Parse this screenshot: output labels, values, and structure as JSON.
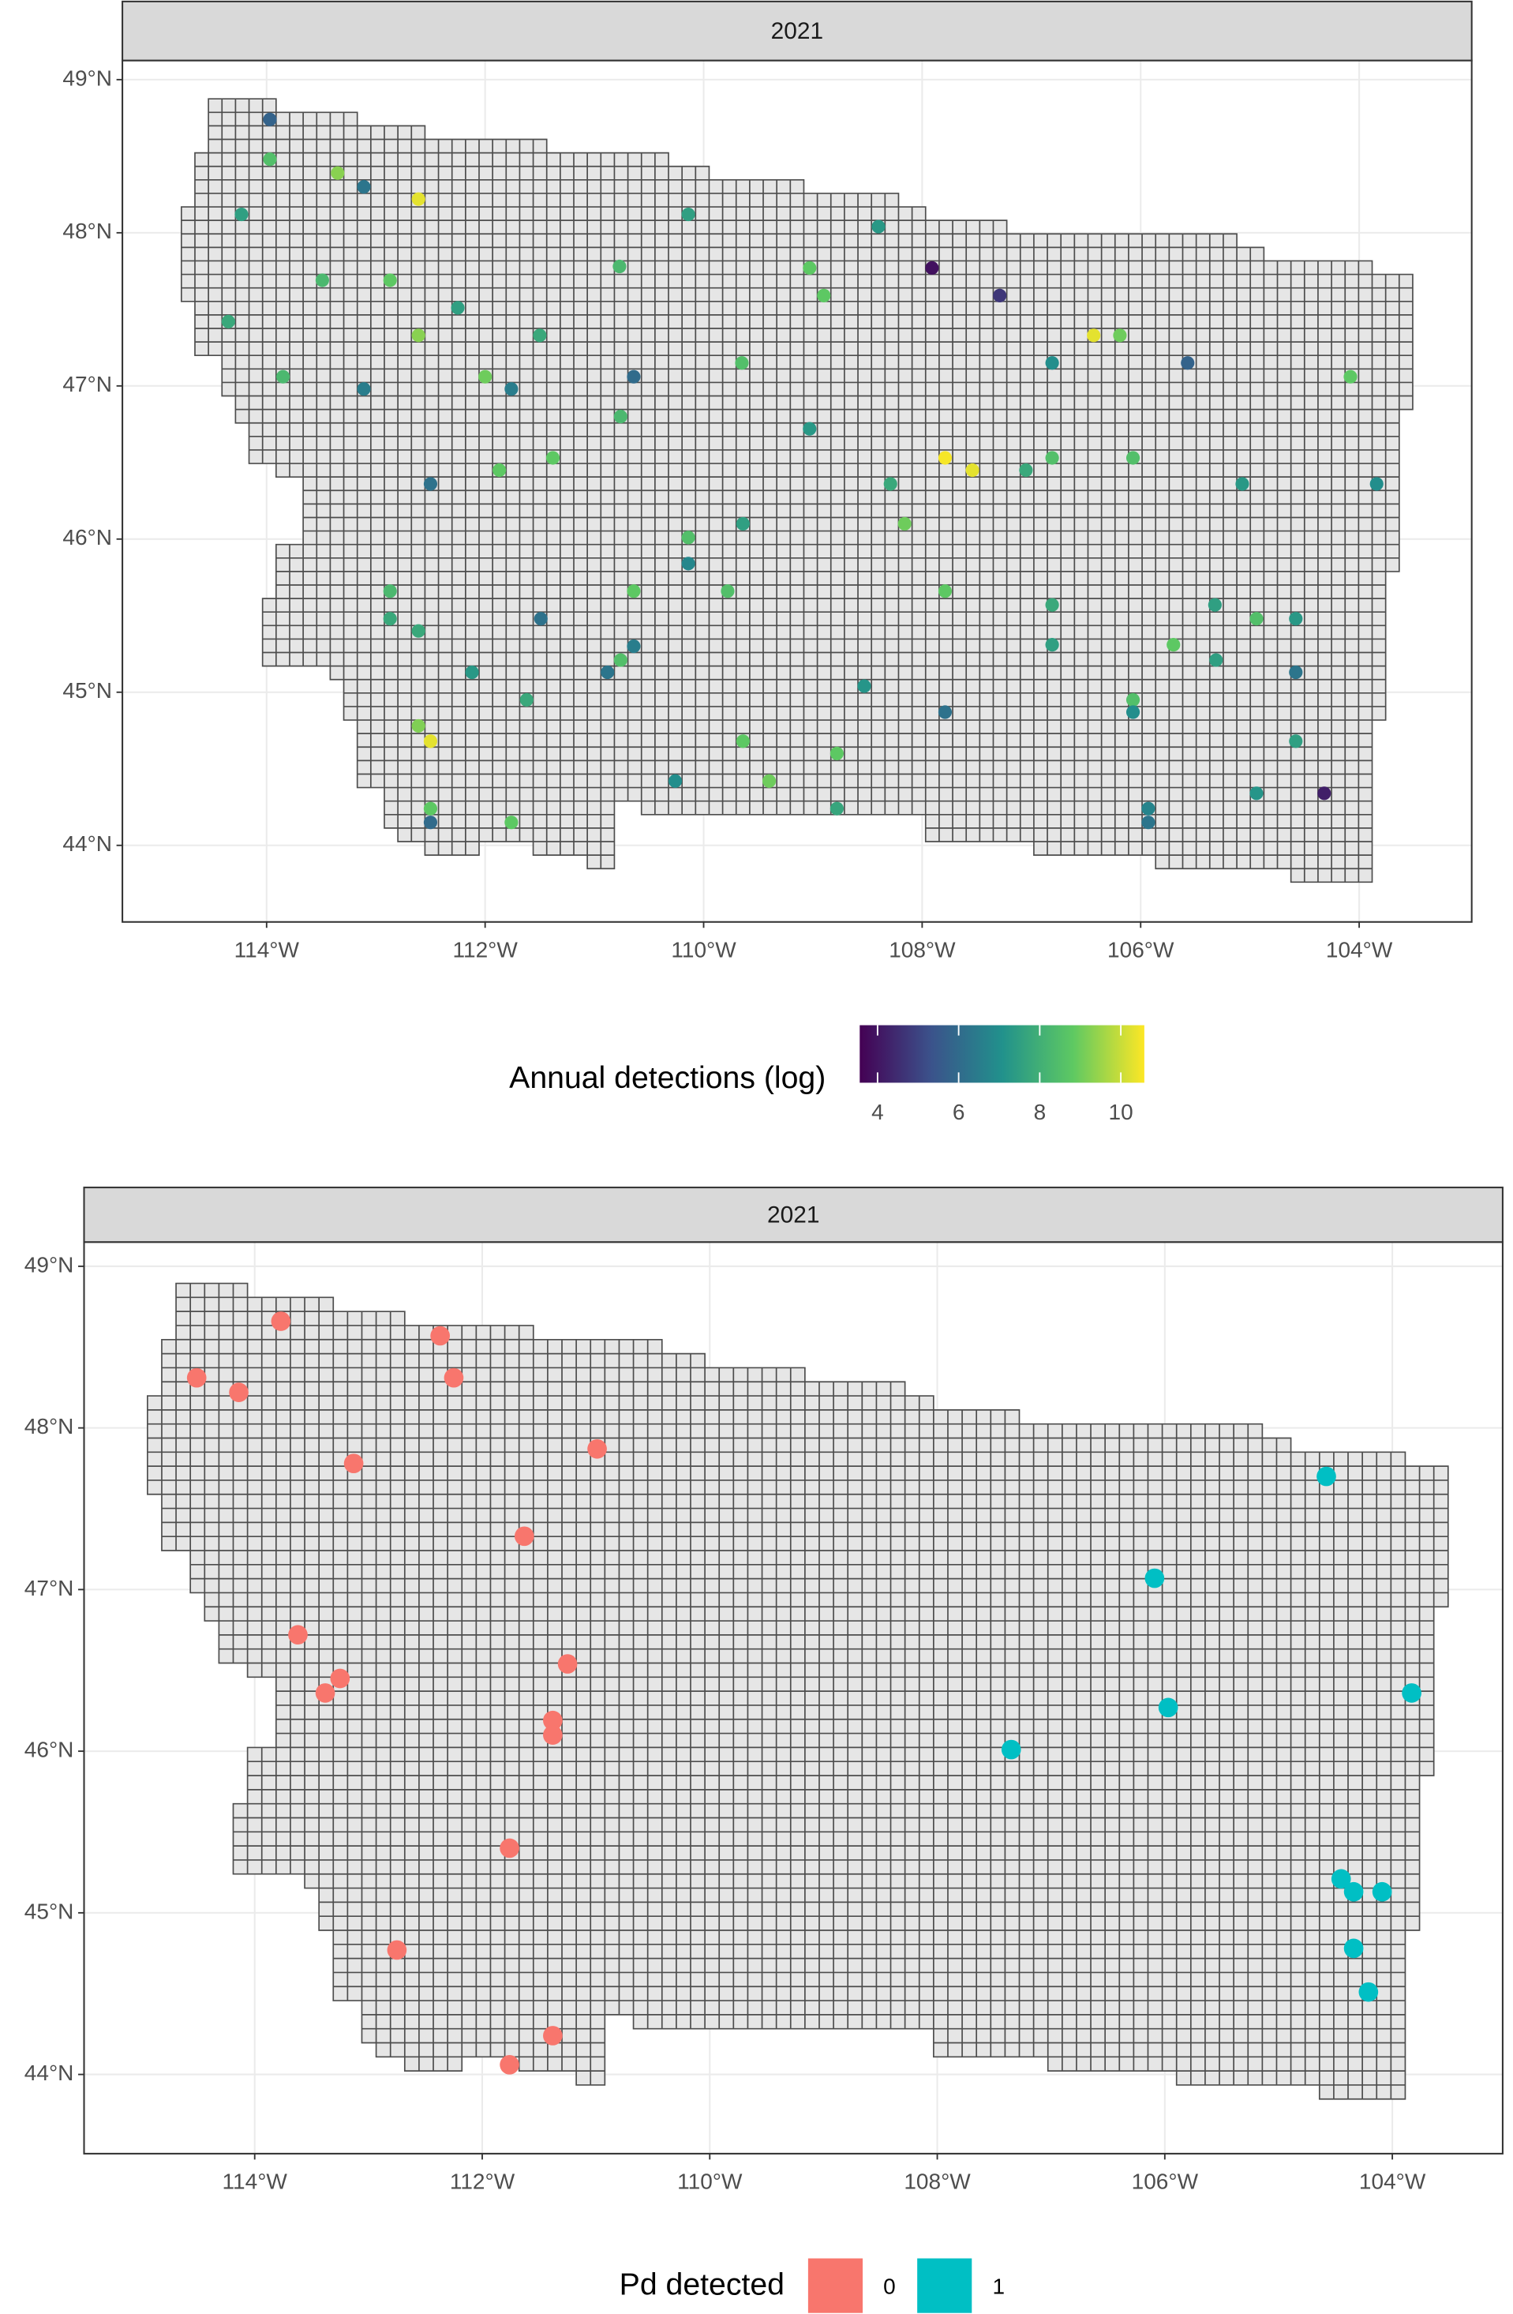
{
  "chart_data": [
    {
      "type": "scatter",
      "strip": "2021",
      "color_scale": "viridis",
      "legend_title": "Annual detections (log)",
      "x": [
        -113.97,
        -113.97,
        -113.35,
        -113.11,
        -112.61,
        -114.23,
        -110.14,
        -108.4,
        -113.49,
        -112.87,
        -110.77,
        -109.03,
        -107.91,
        -107.29,
        -108.9,
        -112.25,
        -114.35,
        -112.61,
        -111.5,
        -106.43,
        -106.19,
        -113.85,
        -112.0,
        -113.11,
        -111.76,
        -110.64,
        -109.65,
        -106.81,
        -105.57,
        -104.08,
        -110.76,
        -109.03,
        -107.79,
        -107.54,
        -111.38,
        -111.87,
        -107.05,
        -106.81,
        -106.07,
        -112.5,
        -108.29,
        -105.07,
        -103.84,
        -109.64,
        -108.16,
        -110.14,
        -110.14,
        -112.87,
        -110.64,
        -109.78,
        -107.79,
        -106.81,
        -105.32,
        -112.87,
        -111.49,
        -104.94,
        -104.58,
        -112.61,
        -110.64,
        -110.76,
        -106.81,
        -105.7,
        -105.31,
        -112.12,
        -110.88,
        -104.58,
        -108.53,
        -111.62,
        -106.07,
        -106.07,
        -107.79,
        -112.61,
        -112.5,
        -109.64,
        -104.58,
        -108.78,
        -110.26,
        -109.4,
        -104.94,
        -104.32,
        -112.5,
        -108.78,
        -105.93,
        -112.5,
        -111.76,
        -105.93
      ],
      "y": [
        48.74,
        48.48,
        48.39,
        48.3,
        48.22,
        48.12,
        48.12,
        48.04,
        47.69,
        47.69,
        47.78,
        47.77,
        47.77,
        47.59,
        47.59,
        47.51,
        47.42,
        47.33,
        47.33,
        47.33,
        47.33,
        47.06,
        47.06,
        46.98,
        46.98,
        47.06,
        47.15,
        47.15,
        47.15,
        47.06,
        46.8,
        46.72,
        46.53,
        46.45,
        46.53,
        46.45,
        46.45,
        46.53,
        46.53,
        46.36,
        46.36,
        46.36,
        46.36,
        46.1,
        46.1,
        46.01,
        45.84,
        45.66,
        45.66,
        45.66,
        45.66,
        45.57,
        45.57,
        45.48,
        45.48,
        45.48,
        45.48,
        45.4,
        45.3,
        45.21,
        45.31,
        45.31,
        45.21,
        45.13,
        45.13,
        45.13,
        45.04,
        44.95,
        44.95,
        44.87,
        44.87,
        44.78,
        44.68,
        44.68,
        44.68,
        44.6,
        44.42,
        44.42,
        44.34,
        44.34,
        44.24,
        44.24,
        44.24,
        44.15,
        44.15,
        44.15
      ],
      "values": [
        5.8,
        8.5,
        9.3,
        6.3,
        10.3,
        7.5,
        7.5,
        7.3,
        8.3,
        8.8,
        8.3,
        8.8,
        3.9,
        4.7,
        8.8,
        7.5,
        7.8,
        9.3,
        7.8,
        10.3,
        9.0,
        8.3,
        9.0,
        6.5,
        6.5,
        6.0,
        8.5,
        7.0,
        5.8,
        8.8,
        8.3,
        7.3,
        10.5,
        10.3,
        8.8,
        8.8,
        7.8,
        8.5,
        8.5,
        6.2,
        7.8,
        7.3,
        7.0,
        7.5,
        9.0,
        8.5,
        6.8,
        8.3,
        8.8,
        8.5,
        8.8,
        7.8,
        7.5,
        7.8,
        6.2,
        8.5,
        7.3,
        7.8,
        6.5,
        8.5,
        7.5,
        8.8,
        7.5,
        7.3,
        6.3,
        6.3,
        7.2,
        7.8,
        8.5,
        7.0,
        6.2,
        9.2,
        10.3,
        8.8,
        7.5,
        8.8,
        7.0,
        9.0,
        7.2,
        4.2,
        8.8,
        7.7,
        6.7,
        6.0,
        8.8,
        6.3
      ],
      "clim": [
        3.56,
        10.58
      ],
      "cticks": [
        4,
        6,
        8,
        10
      ],
      "xlim": [
        -115.32,
        -102.97
      ],
      "ylim": [
        43.5,
        49.125
      ],
      "xticks": [
        {
          "value": -114,
          "label": "114°W"
        },
        {
          "value": -112,
          "label": "112°W"
        },
        {
          "value": -110,
          "label": "110°W"
        },
        {
          "value": -108,
          "label": "108°W"
        },
        {
          "value": -106,
          "label": "106°W"
        },
        {
          "value": -104,
          "label": "104°W"
        }
      ],
      "yticks": [
        {
          "value": 44,
          "label": "44°N"
        },
        {
          "value": 45,
          "label": "45°N"
        },
        {
          "value": 46,
          "label": "46°N"
        },
        {
          "value": 47,
          "label": "47°N"
        },
        {
          "value": 48,
          "label": "48°N"
        },
        {
          "value": 49,
          "label": "49°N"
        }
      ],
      "grid": true
    },
    {
      "type": "scatter",
      "strip": "2021",
      "legend_title": "Pd detected",
      "series": [
        {
          "name": "0",
          "color": "#f8766d",
          "x": [
            -114.51,
            -114.14,
            -113.77,
            -112.37,
            -112.25,
            -113.13,
            -110.99,
            -111.63,
            -113.62,
            -113.25,
            -113.38,
            -111.25,
            -111.38,
            -111.38,
            -111.76,
            -112.75,
            -111.38,
            -111.76
          ],
          "y": [
            48.31,
            48.22,
            48.66,
            48.57,
            48.31,
            47.78,
            47.87,
            47.33,
            46.72,
            46.45,
            46.36,
            46.54,
            46.19,
            46.1,
            45.4,
            44.77,
            44.24,
            44.06
          ]
        },
        {
          "name": "1",
          "color": "#00bfc4",
          "x": [
            -104.58,
            -106.09,
            -103.83,
            -105.97,
            -107.35,
            -104.45,
            -104.34,
            -104.09,
            -104.34,
            -104.21
          ],
          "y": [
            47.7,
            47.07,
            46.36,
            46.27,
            46.01,
            45.21,
            45.13,
            45.13,
            44.78,
            44.51
          ]
        }
      ],
      "xlim": [
        -115.5,
        -103.03
      ],
      "ylim": [
        43.51,
        49.15
      ],
      "xticks": [
        {
          "value": -114,
          "label": "114°W"
        },
        {
          "value": -112,
          "label": "112°W"
        },
        {
          "value": -110,
          "label": "110°W"
        },
        {
          "value": -108,
          "label": "108°W"
        },
        {
          "value": -106,
          "label": "106°W"
        },
        {
          "value": -104,
          "label": "104°W"
        }
      ],
      "yticks": [
        {
          "value": 44,
          "label": "44°N"
        },
        {
          "value": 45,
          "label": "45°N"
        },
        {
          "value": 46,
          "label": "46°N"
        },
        {
          "value": 47,
          "label": "47°N"
        },
        {
          "value": 48,
          "label": "48°N"
        },
        {
          "value": 49,
          "label": "49°N"
        }
      ],
      "grid": true
    }
  ]
}
